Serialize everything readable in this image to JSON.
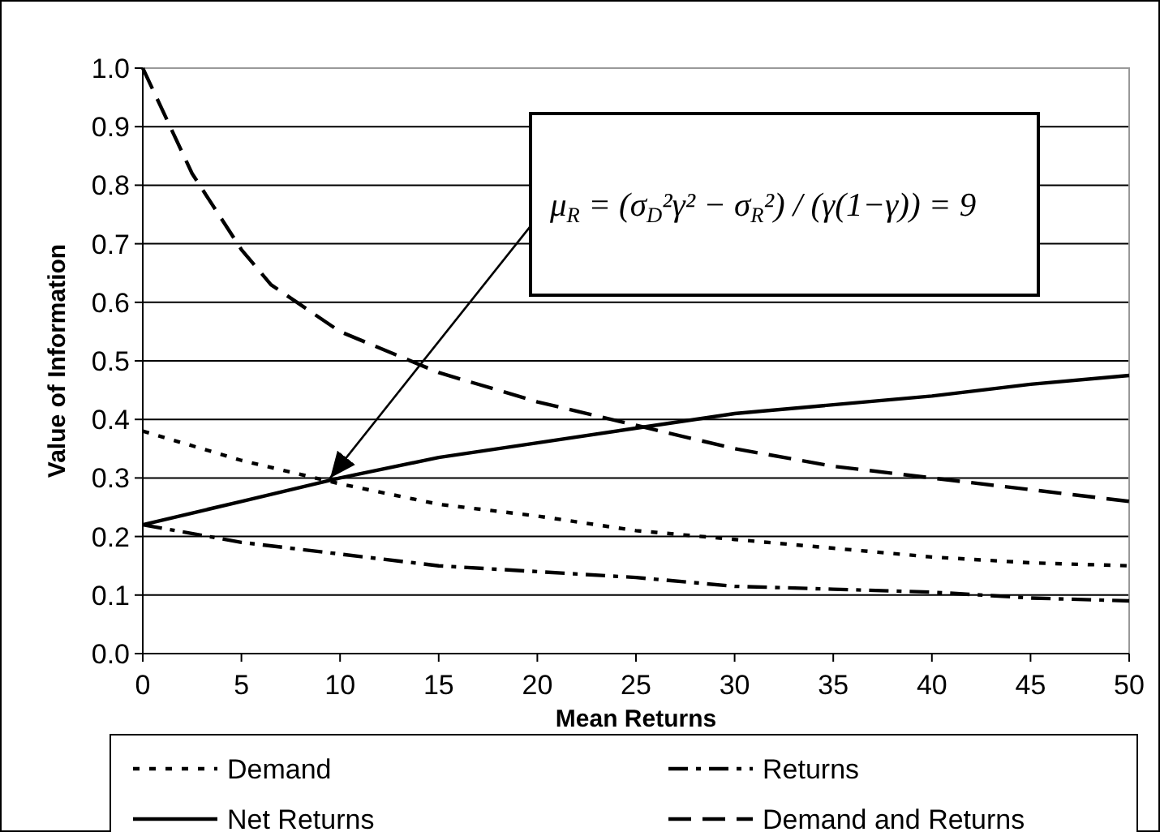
{
  "chart_data": {
    "type": "line",
    "xlabel": "Mean Returns",
    "ylabel": "Value of Information",
    "xlim": [
      0,
      50
    ],
    "xticks": [
      0,
      5,
      10,
      15,
      20,
      25,
      30,
      35,
      40,
      45,
      50
    ],
    "ylim": [
      0,
      1
    ],
    "yticks": [
      {
        "value": 0,
        "label": "0.0"
      },
      {
        "value": 0.1,
        "label": "0.1"
      },
      {
        "value": 0.2,
        "label": "0.2"
      },
      {
        "value": 0.3,
        "label": "0.3"
      },
      {
        "value": 0.4,
        "label": "0.4"
      },
      {
        "value": 0.5,
        "label": "0.5"
      },
      {
        "value": 0.6,
        "label": "0.6"
      },
      {
        "value": 0.7,
        "label": "0.7"
      },
      {
        "value": 0.8,
        "label": "0.8"
      },
      {
        "value": 0.9,
        "label": "0.9"
      },
      {
        "value": 1,
        "label": "1.0"
      }
    ],
    "grid": "y",
    "legend": "bottom",
    "marker": "none",
    "series": [
      {
        "name": "Demand",
        "color": "#000000",
        "line_style": "dotted",
        "x": [
          0,
          5,
          10,
          15,
          20,
          25,
          30,
          35,
          40,
          45,
          50
        ],
        "values": [
          0.38,
          0.33,
          0.29,
          0.255,
          0.235,
          0.21,
          0.195,
          0.18,
          0.165,
          0.155,
          0.15
        ]
      },
      {
        "name": "Returns",
        "color": "#000000",
        "line_style": "dashdot",
        "x": [
          0,
          5,
          10,
          15,
          20,
          25,
          30,
          35,
          40,
          45,
          50
        ],
        "values": [
          0.22,
          0.19,
          0.17,
          0.15,
          0.14,
          0.13,
          0.115,
          0.11,
          0.105,
          0.095,
          0.09
        ]
      },
      {
        "name": "Net Returns",
        "color": "#000000",
        "line_style": "solid",
        "x": [
          0,
          5,
          10,
          15,
          20,
          25,
          30,
          35,
          40,
          45,
          50
        ],
        "values": [
          0.22,
          0.26,
          0.3,
          0.335,
          0.36,
          0.385,
          0.41,
          0.425,
          0.44,
          0.46,
          0.475
        ]
      },
      {
        "name": "Demand and Returns",
        "color": "#000000",
        "line_style": "dashed",
        "x": [
          0,
          2.5,
          5,
          6.5,
          10,
          15,
          20,
          25,
          30,
          35,
          40,
          45,
          50
        ],
        "values": [
          1.0,
          0.82,
          0.69,
          0.63,
          0.55,
          0.48,
          0.43,
          0.39,
          0.35,
          0.32,
          0.3,
          0.28,
          0.26
        ]
      }
    ],
    "annotations": [
      {
        "text": "μ$_{R}$ = (σ$_{D}$²γ² − σ$_{R}$²) / (γ(1−γ)) = 9",
        "x": 9.5,
        "y": 0.3
      }
    ]
  }
}
